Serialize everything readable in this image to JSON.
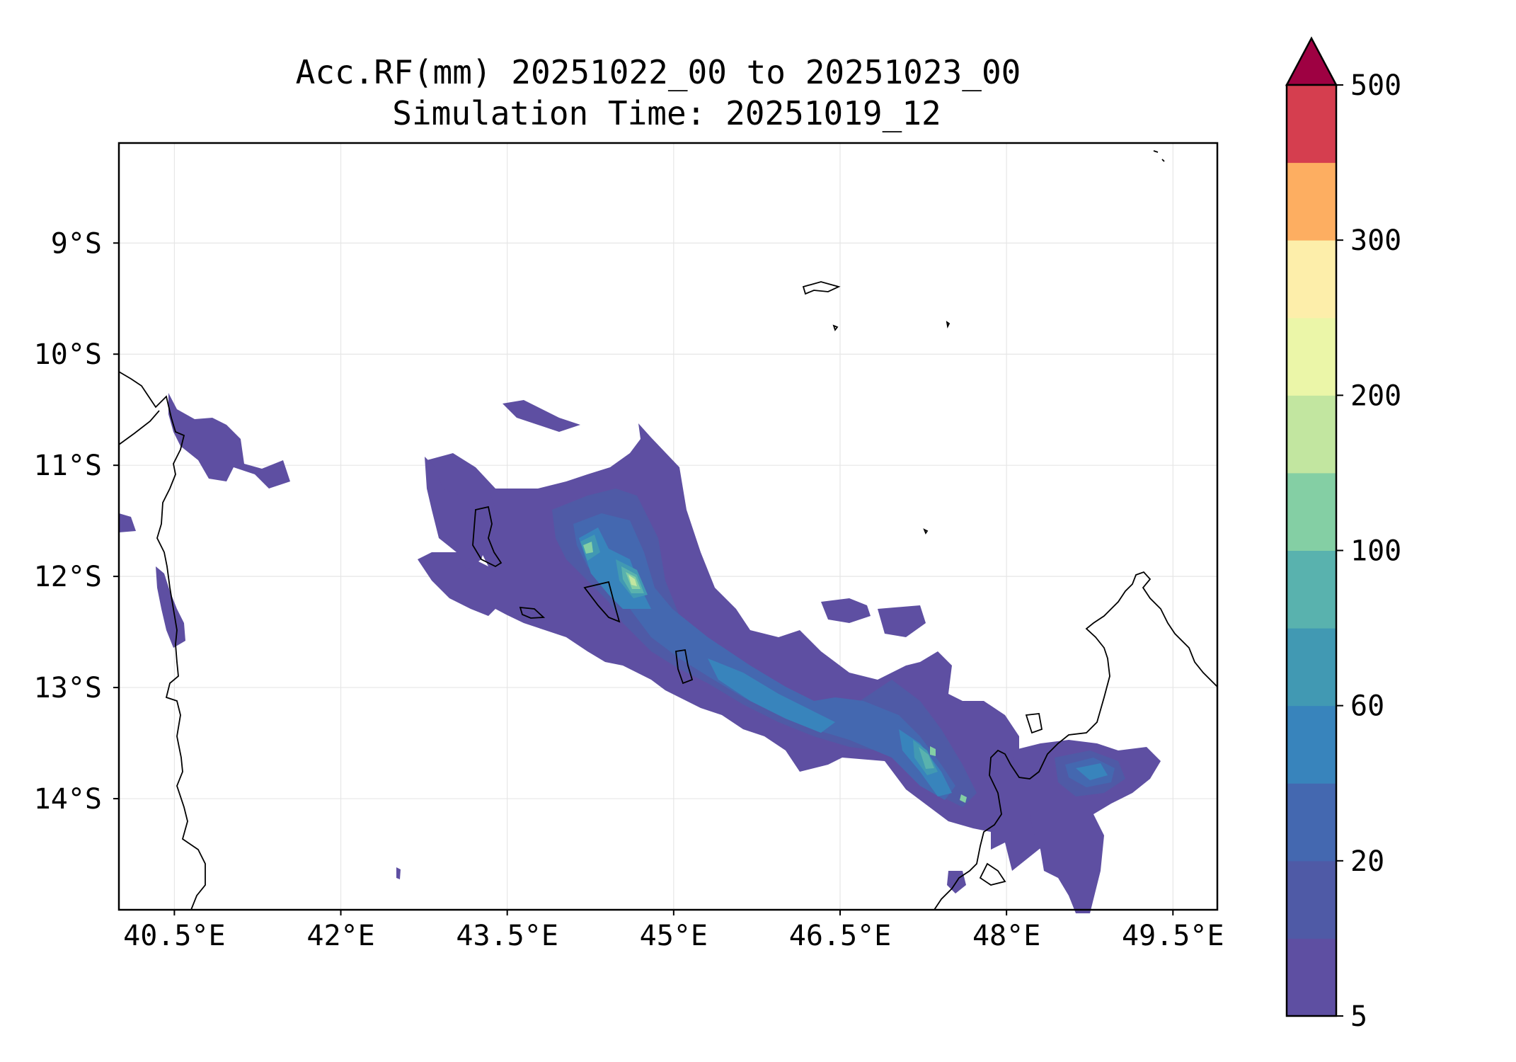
{
  "title": {
    "line1": "Acc.RF(mm) 20251022_00 to 20251023_00",
    "line2": "Simulation Time: 20251019_12"
  },
  "map": {
    "lon_range": [
      40.0,
      49.9
    ],
    "lat_range": [
      -15.0,
      -8.1
    ],
    "x_ticks": [
      {
        "value": 40.5,
        "label": "40.5°E"
      },
      {
        "value": 42.0,
        "label": "42°E"
      },
      {
        "value": 43.5,
        "label": "43.5°E"
      },
      {
        "value": 45.0,
        "label": "45°E"
      },
      {
        "value": 46.5,
        "label": "46.5°E"
      },
      {
        "value": 48.0,
        "label": "48°E"
      },
      {
        "value": 49.5,
        "label": "49.5°E"
      }
    ],
    "y_ticks": [
      {
        "value": -9,
        "label": "9°S"
      },
      {
        "value": -10,
        "label": "10°S"
      },
      {
        "value": -11,
        "label": "11°S"
      },
      {
        "value": -12,
        "label": "12°S"
      },
      {
        "value": -13,
        "label": "13°S"
      },
      {
        "value": -14,
        "label": "14°S"
      }
    ]
  },
  "colorbar": {
    "levels": [
      5,
      10,
      20,
      40,
      60,
      80,
      100,
      150,
      200,
      250,
      300,
      400,
      500
    ],
    "colors": [
      "#5e4fa2",
      "#4f5aa6",
      "#4468b0",
      "#3884bc",
      "#4199b3",
      "#59b2ae",
      "#84cfa4",
      "#c2e6a0",
      "#ebf6a8",
      "#fdeeaa",
      "#fdae61",
      "#d53e4f"
    ],
    "extend_color": "#9e0142",
    "tick_labels": [
      {
        "value": 5,
        "label": "5"
      },
      {
        "value": 20,
        "label": "20"
      },
      {
        "value": 60,
        "label": "60"
      },
      {
        "value": 100,
        "label": "100"
      },
      {
        "value": 200,
        "label": "200"
      },
      {
        "value": 300,
        "label": "300"
      },
      {
        "value": 500,
        "label": "500"
      }
    ]
  },
  "colors": {
    "coast": "#000000",
    "grid": "#e6e6e6",
    "frame": "#000000"
  }
}
